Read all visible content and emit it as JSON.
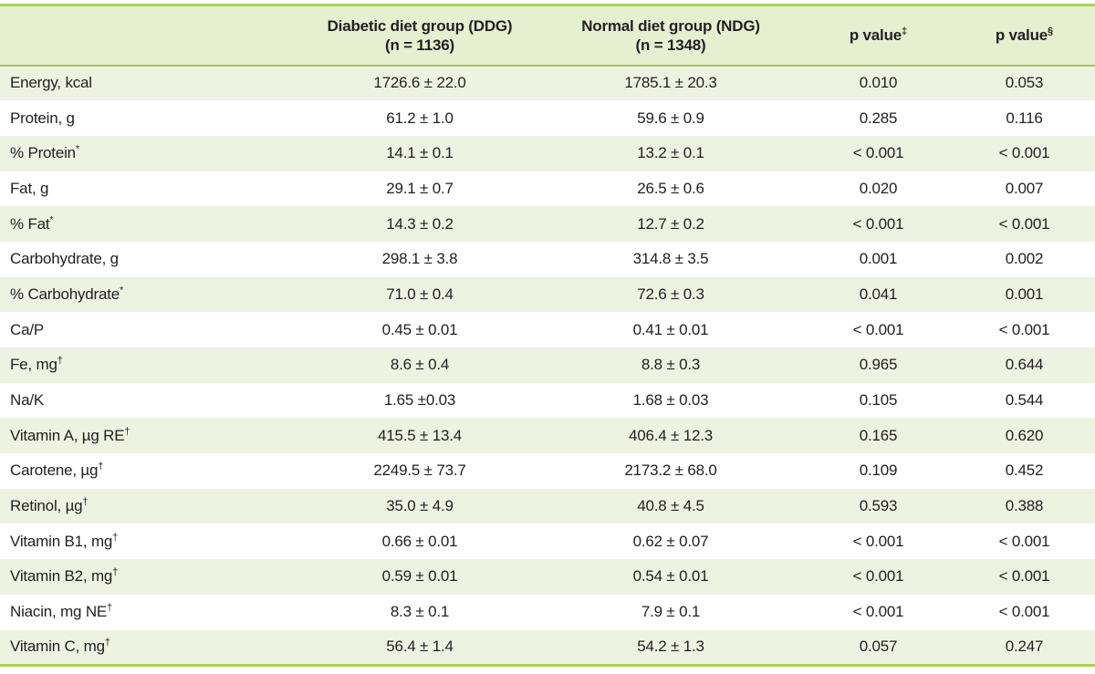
{
  "colors": {
    "accent_rule_green": "#a9d058",
    "header_background_green": "#e6efd0",
    "header_rule_green": "#aac46a",
    "row_alternate_green": "#eef2e1",
    "text": "#231f20"
  },
  "table": {
    "header": {
      "row_label": "",
      "ddg": {
        "line1": "Diabetic diet group (DDG)",
        "line2": "(n = 1136)"
      },
      "ndg": {
        "line1": "Normal diet group (NDG)",
        "line2": "(n = 1348)"
      },
      "p1": {
        "label": "p value",
        "sup": "‡"
      },
      "p2": {
        "label": "p value",
        "sup": "§"
      }
    },
    "rows": [
      {
        "label": "Energy, kcal",
        "sup": "",
        "ddg": "1726.6 ± 22.0",
        "ndg": "1785.1 ± 20.3",
        "p1": "0.010",
        "p2": "0.053"
      },
      {
        "label": "Protein, g",
        "sup": "",
        "ddg": "61.2 ± 1.0",
        "ndg": "59.6 ± 0.9",
        "p1": "0.285",
        "p2": "0.116"
      },
      {
        "label": "% Protein",
        "sup": "*",
        "ddg": "14.1 ± 0.1",
        "ndg": "13.2 ± 0.1",
        "p1": "< 0.001",
        "p2": "< 0.001"
      },
      {
        "label": "Fat, g",
        "sup": "",
        "ddg": "29.1 ± 0.7",
        "ndg": "26.5 ± 0.6",
        "p1": "0.020",
        "p2": "0.007"
      },
      {
        "label": "% Fat",
        "sup": "*",
        "ddg": "14.3 ± 0.2",
        "ndg": "12.7 ± 0.2",
        "p1": "< 0.001",
        "p2": "< 0.001"
      },
      {
        "label": "Carbohydrate, g",
        "sup": "",
        "ddg": "298.1 ± 3.8",
        "ndg": "314.8 ± 3.5",
        "p1": "0.001",
        "p2": "0.002"
      },
      {
        "label": "% Carbohydrate",
        "sup": "*",
        "ddg": "71.0 ± 0.4",
        "ndg": "72.6 ± 0.3",
        "p1": "0.041",
        "p2": "0.001"
      },
      {
        "label": "Ca/P",
        "sup": "",
        "ddg": "0.45 ± 0.01",
        "ndg": "0.41 ± 0.01",
        "p1": "< 0.001",
        "p2": "< 0.001"
      },
      {
        "label": "Fe, mg",
        "sup": "†",
        "ddg": "8.6 ± 0.4",
        "ndg": "8.8 ± 0.3",
        "p1": "0.965",
        "p2": "0.644"
      },
      {
        "label": "Na/K",
        "sup": "",
        "ddg": "1.65 ±0.03",
        "ndg": "1.68 ± 0.03",
        "p1": "0.105",
        "p2": "0.544"
      },
      {
        "label": "Vitamin A, µg RE",
        "sup": "†",
        "ddg": "415.5 ± 13.4",
        "ndg": "406.4 ± 12.3",
        "p1": "0.165",
        "p2": "0.620"
      },
      {
        "label": "Carotene, µg",
        "sup": "†",
        "ddg": "2249.5 ± 73.7",
        "ndg": "2173.2 ± 68.0",
        "p1": "0.109",
        "p2": "0.452"
      },
      {
        "label": "Retinol, µg",
        "sup": "†",
        "ddg": "35.0 ± 4.9",
        "ndg": "40.8 ± 4.5",
        "p1": "0.593",
        "p2": "0.388"
      },
      {
        "label": "Vitamin B1, mg",
        "sup": "†",
        "ddg": "0.66 ± 0.01",
        "ndg": "0.62 ± 0.07",
        "p1": "< 0.001",
        "p2": "< 0.001"
      },
      {
        "label": "Vitamin B2, mg",
        "sup": "†",
        "ddg": "0.59 ± 0.01",
        "ndg": "0.54 ± 0.01",
        "p1": "< 0.001",
        "p2": "< 0.001"
      },
      {
        "label": "Niacin, mg NE",
        "sup": "†",
        "ddg": "8.3 ± 0.1",
        "ndg": "7.9 ± 0.1",
        "p1": "< 0.001",
        "p2": "< 0.001"
      },
      {
        "label": "Vitamin C, mg",
        "sup": "†",
        "ddg": "56.4 ± 1.4",
        "ndg": "54.2 ± 1.3",
        "p1": "0.057",
        "p2": "0.247"
      }
    ]
  }
}
